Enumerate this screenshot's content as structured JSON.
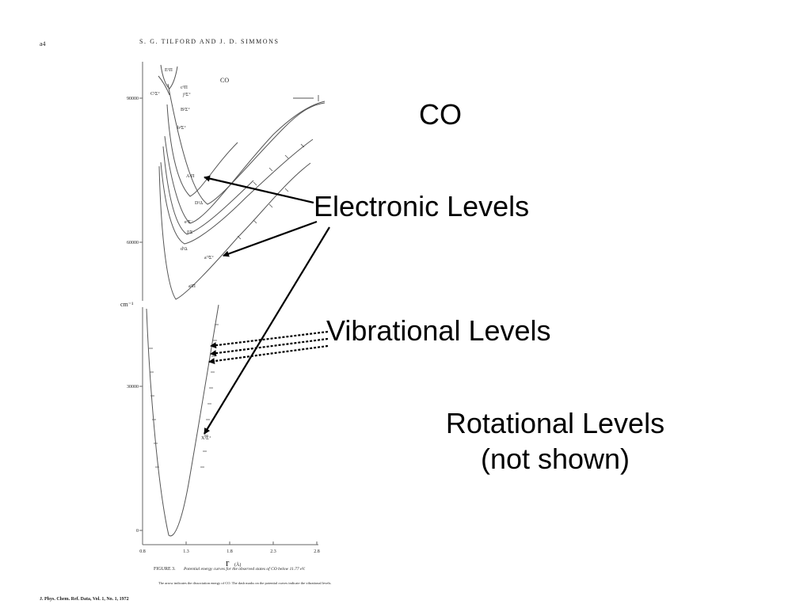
{
  "slide": {
    "title": "CO",
    "electronic_label": "Electronic Levels",
    "vibrational_label": "Vibrational Levels",
    "rotational_label_line1": "Rotational Levels",
    "rotational_label_line2": "(not shown)"
  },
  "figure": {
    "page_number": "a4",
    "running_header": "S. G. TILFORD AND J. D. SIMMONS",
    "molecule_label": "CO",
    "y_unit": "cm⁻¹",
    "y_ticks": [
      "90000",
      "60000",
      "30000",
      "0"
    ],
    "x_ticks": [
      "0.8",
      "1.3",
      "1.8",
      "2.3",
      "2.8"
    ],
    "x_axis_label": "r",
    "x_axis_unit": "(Å)",
    "state_labels": {
      "E": "E¹Π",
      "C": "C¹Σ⁺",
      "c": "c³Π",
      "j": "j³Σ⁺",
      "B": "B¹Σ⁺",
      "b": "b³Σ⁺",
      "A": "A¹Π",
      "D": "D¹Δ",
      "e": "e³Σ⁻",
      "I": "I¹Σ⁻",
      "d": "d³Δ",
      "a_prime": "a′³Σ⁺",
      "a": "a³Π",
      "X": "X¹Σ⁺"
    },
    "caption_title": "FIGURE 3.",
    "caption_text": "Potential energy curves for the observed states of CO below 11.77 eV.",
    "caption_note": "The arrow indicates the dissociation energy of CO. The dash marks on the potential curves indicate the vibrational levels.",
    "journal_footer": "J. Phys. Chem. Ref. Data, Vol. 1, No. 1, 1972"
  }
}
